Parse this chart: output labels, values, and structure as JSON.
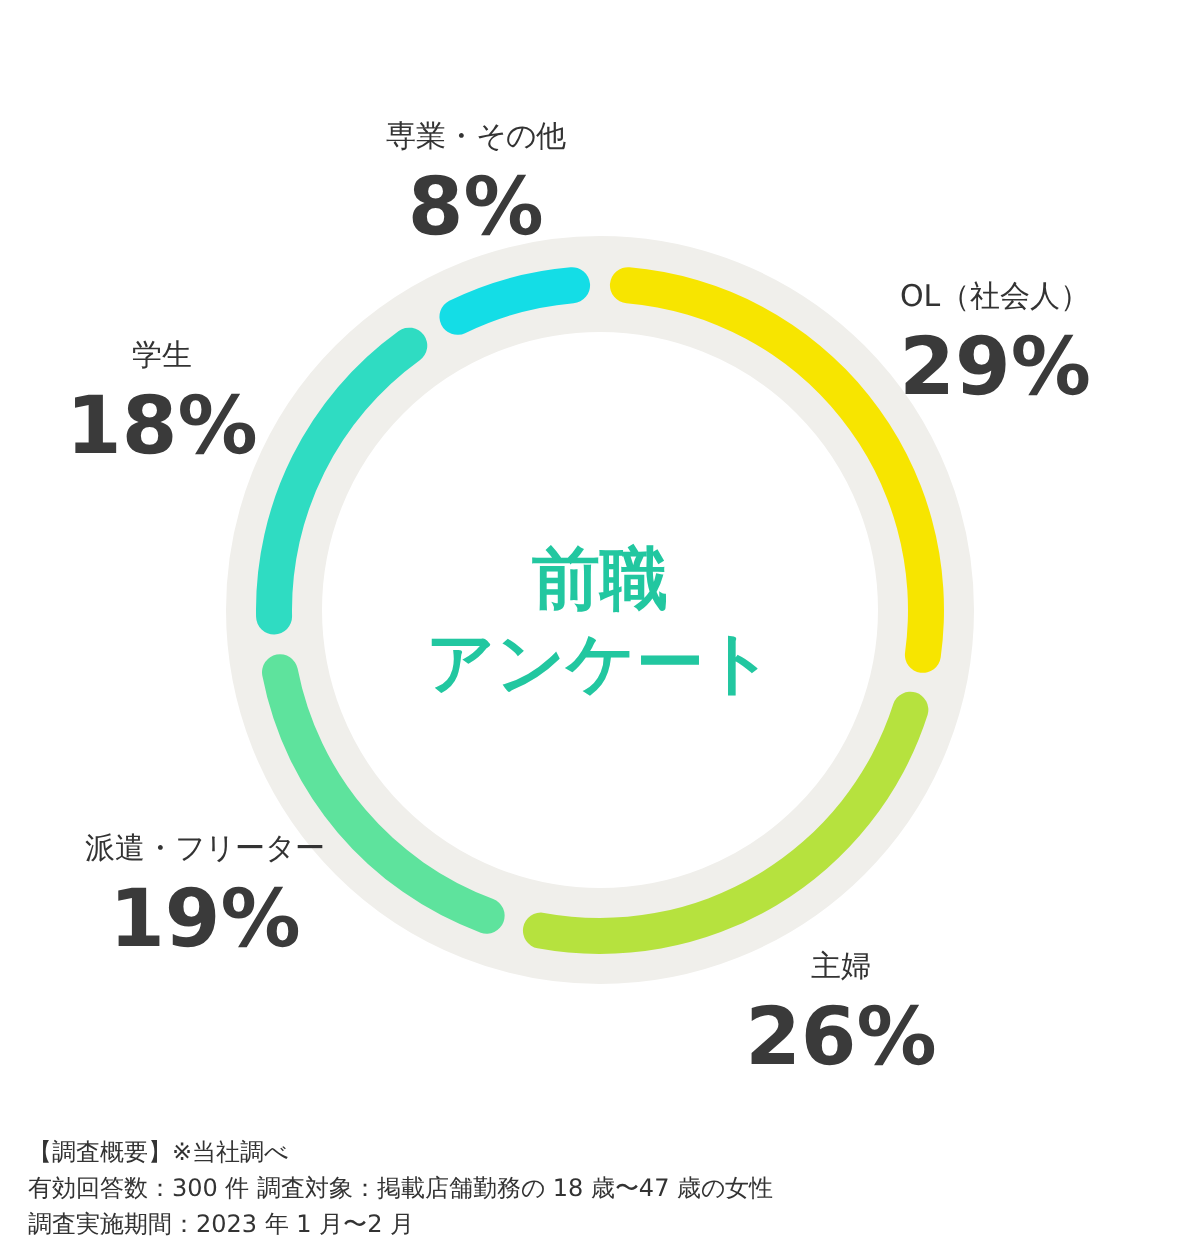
{
  "chart_data": {
    "type": "donut",
    "title": "前職",
    "subtitle": "アンケート",
    "categories": [
      "OL（社会人）",
      "主婦",
      "派遣・フリーター",
      "学生",
      "専業・その他"
    ],
    "values": [
      29,
      26,
      19,
      18,
      8
    ],
    "value_labels": [
      "29%",
      "26%",
      "19%",
      "18%",
      "8%"
    ],
    "colors": [
      "#f7e500",
      "#b6e23e",
      "#5ee39d",
      "#2fdcc2",
      "#14dde6"
    ],
    "annotations": [
      "【調査概要】※当社調べ",
      "有効回答数：300 件 調査対象：掲載店舗勤務の 18 歳〜47 歳の女性",
      "調査実施期間：2023 年 1 月〜2 月"
    ]
  }
}
